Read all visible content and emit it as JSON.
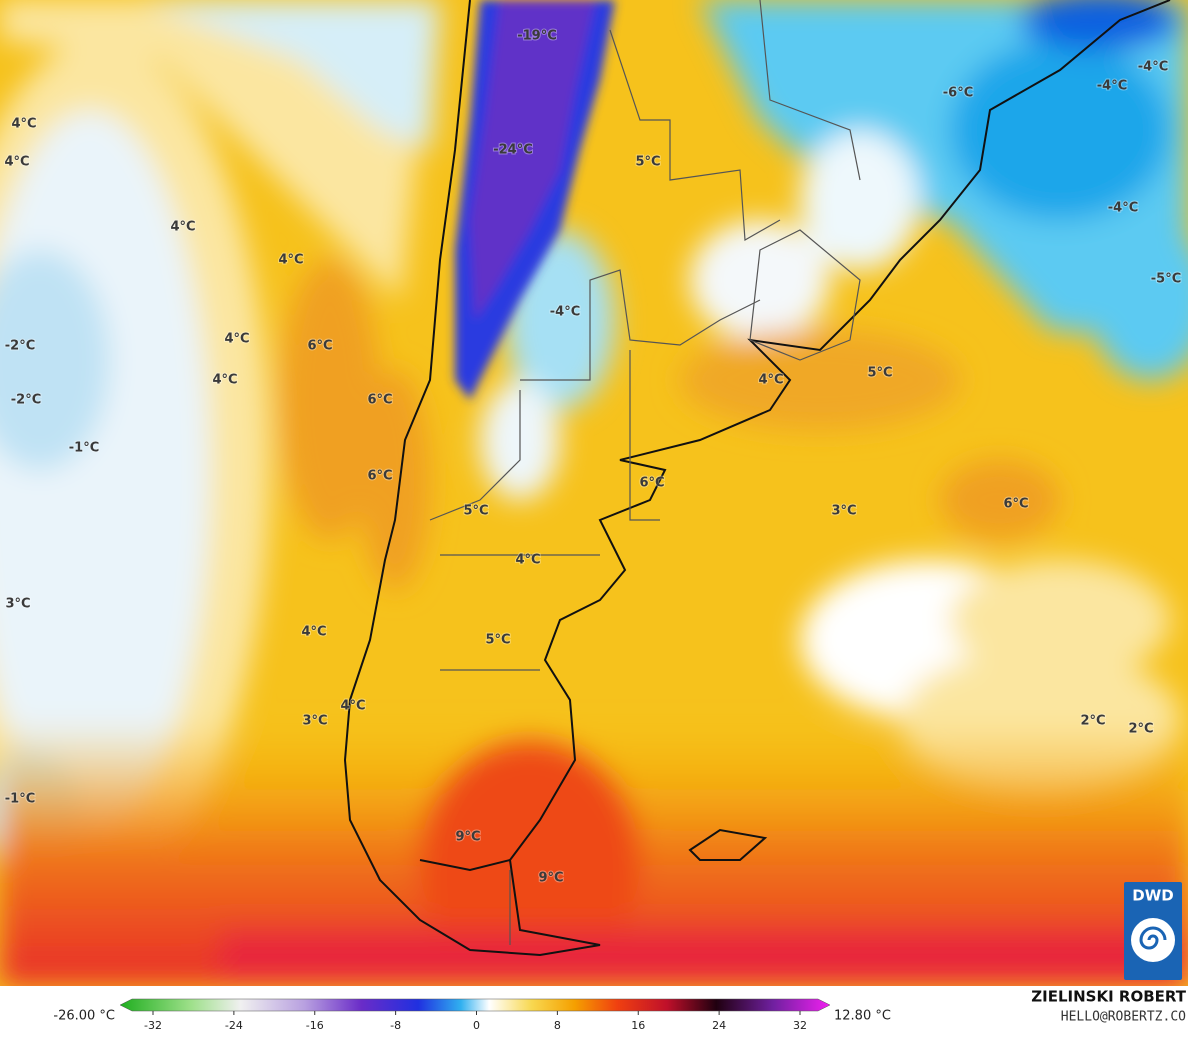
{
  "map": {
    "labels": [
      "-19°C",
      "-24°C",
      "5°C",
      "-6°C",
      "-4°C",
      "-4°C",
      "-4°C",
      "-5°C",
      "4°C",
      "4°C",
      "4°C",
      "4°C",
      "4°C",
      "6°C",
      "4°C",
      "-2°C",
      "-2°C",
      "-1°C",
      "-4°C",
      "4°C",
      "5°C",
      "6°C",
      "6°C",
      "6°C",
      "5°C",
      "3°C",
      "6°C",
      "4°C",
      "3°C",
      "4°C",
      "5°C",
      "3°C",
      "4°C",
      "2°C",
      "2°C",
      "-1°C",
      "9°C",
      "9°C"
    ]
  },
  "colorbar": {
    "min_label": "-26.00 °C",
    "max_label": "12.80 °C",
    "ticks": [
      -32,
      -24,
      -16,
      -8,
      0,
      8,
      16,
      24,
      32
    ]
  },
  "credit": {
    "name": "ZIELINSKI ROBERT",
    "contact": "HELLO@ROBERTZ.CO"
  },
  "logo": "DWD"
}
